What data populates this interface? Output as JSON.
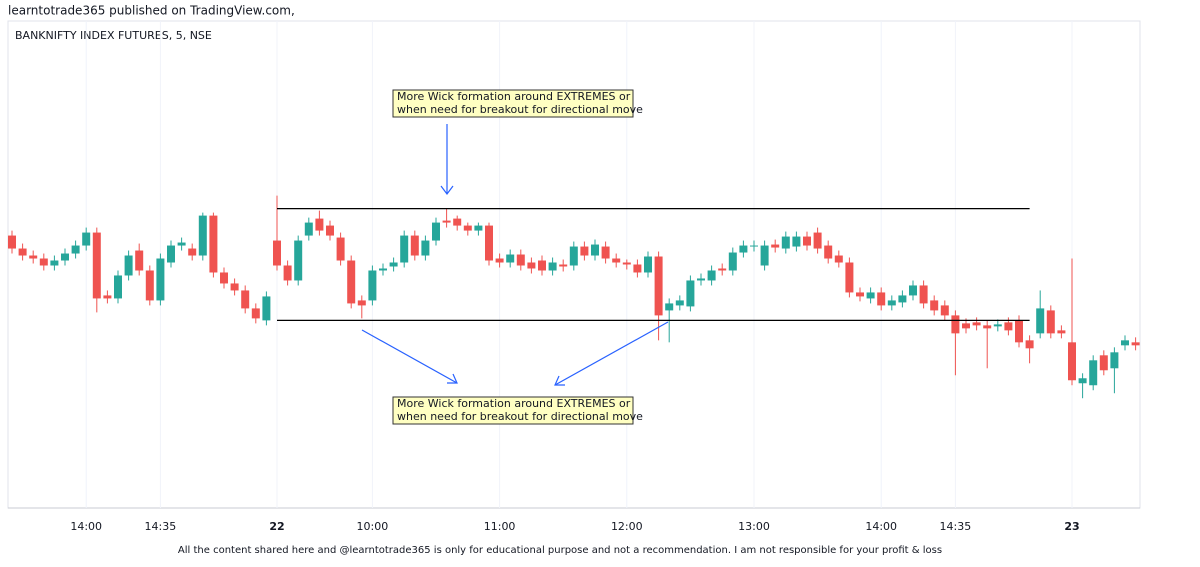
{
  "header": {
    "publisher": "learntotrade365 published on TradingView.com,"
  },
  "chart_data": {
    "type": "candlestick",
    "title": "BANKNIFTY INDEX FUTURES, 5, NSE",
    "x": [
      null,
      null,
      null,
      null,
      null,
      null,
      null,
      "14:00",
      null,
      null,
      null,
      null,
      null,
      null,
      "14:35",
      null,
      null,
      null,
      null,
      null,
      null,
      null,
      null,
      null,
      null,
      "22",
      null,
      null,
      null,
      null,
      null,
      null,
      null,
      null,
      "10:00",
      null,
      null,
      null,
      null,
      null,
      null,
      null,
      null,
      null,
      null,
      null,
      "11:00",
      null,
      null,
      null,
      null,
      null,
      null,
      null,
      null,
      null,
      null,
      null,
      "12:00",
      null,
      null,
      null,
      null,
      null,
      null,
      null,
      null,
      null,
      null,
      null,
      "13:00",
      null,
      null,
      null,
      null,
      null,
      null,
      null,
      null,
      null,
      null,
      null,
      "14:00",
      null,
      null,
      null,
      null,
      null,
      null,
      "14:35",
      null,
      null,
      null,
      null,
      null,
      null,
      null,
      null,
      null,
      null,
      "23",
      null,
      null,
      null,
      null,
      null,
      null
    ],
    "open": [
      273,
      260,
      253,
      250,
      243,
      248,
      255,
      263,
      276,
      213,
      210,
      233,
      258,
      238,
      208,
      246,
      263,
      260,
      253,
      293,
      236,
      225,
      218,
      200,
      188,
      268,
      243,
      228,
      273,
      290,
      283,
      271,
      248,
      208,
      208,
      238,
      242,
      246,
      273,
      253,
      268,
      288,
      290,
      283,
      278,
      283,
      250,
      246,
      254,
      246,
      248,
      238,
      244,
      243,
      262,
      253,
      262,
      250,
      246,
      244,
      236,
      252,
      198,
      203,
      202,
      228,
      228,
      240,
      238,
      256,
      262,
      243,
      264,
      260,
      262,
      272,
      276,
      263,
      253,
      246,
      216,
      210,
      216,
      203,
      206,
      213,
      223,
      208,
      203,
      193,
      185,
      186,
      183,
      182,
      186,
      188,
      168,
      175,
      198,
      178,
      166,
      125,
      123,
      153,
      140,
      163,
      166
    ],
    "high": [
      278,
      265,
      258,
      255,
      253,
      260,
      268,
      281,
      281,
      218,
      238,
      258,
      265,
      243,
      255,
      268,
      271,
      265,
      296,
      296,
      241,
      230,
      223,
      205,
      217,
      313,
      248,
      273,
      291,
      298,
      288,
      276,
      253,
      213,
      243,
      245,
      251,
      278,
      278,
      273,
      291,
      300,
      293,
      286,
      286,
      286,
      255,
      259,
      259,
      251,
      253,
      251,
      249,
      267,
      267,
      269,
      267,
      255,
      249,
      249,
      257,
      257,
      210,
      213,
      233,
      235,
      243,
      245,
      261,
      268,
      268,
      268,
      269,
      277,
      277,
      277,
      281,
      268,
      258,
      251,
      221,
      221,
      221,
      213,
      218,
      228,
      228,
      213,
      208,
      198,
      190,
      191,
      188,
      189,
      191,
      193,
      173,
      218,
      203,
      183,
      250,
      135,
      153,
      158,
      161,
      173,
      171
    ],
    "low": [
      255,
      248,
      245,
      238,
      238,
      243,
      250,
      258,
      196,
      205,
      205,
      228,
      233,
      203,
      203,
      241,
      258,
      248,
      248,
      231,
      220,
      213,
      195,
      185,
      183,
      238,
      223,
      223,
      268,
      273,
      268,
      243,
      200,
      190,
      203,
      233,
      237,
      241,
      248,
      248,
      263,
      281,
      278,
      273,
      273,
      243,
      241,
      241,
      238,
      235,
      233,
      233,
      237,
      238,
      248,
      248,
      245,
      241,
      239,
      231,
      231,
      168,
      166,
      198,
      197,
      223,
      223,
      233,
      233,
      251,
      257,
      238,
      256,
      255,
      257,
      258,
      255,
      245,
      241,
      211,
      207,
      205,
      198,
      198,
      201,
      208,
      200,
      193,
      188,
      133,
      175,
      178,
      140,
      177,
      173,
      161,
      145,
      170,
      170,
      170,
      123,
      110,
      118,
      133,
      115,
      158,
      158
    ],
    "close": [
      260,
      253,
      250,
      243,
      248,
      255,
      263,
      276,
      210,
      210,
      233,
      253,
      238,
      208,
      250,
      263,
      266,
      253,
      293,
      236,
      225,
      218,
      200,
      190,
      212,
      243,
      228,
      268,
      286,
      278,
      273,
      248,
      205,
      203,
      238,
      240,
      246,
      273,
      253,
      268,
      286,
      286,
      283,
      278,
      283,
      248,
      246,
      254,
      243,
      240,
      238,
      246,
      242,
      262,
      253,
      264,
      250,
      246,
      244,
      236,
      252,
      193,
      205,
      208,
      228,
      230,
      238,
      238,
      256,
      263,
      263,
      263,
      261,
      272,
      272,
      263,
      260,
      250,
      246,
      216,
      212,
      216,
      203,
      208,
      213,
      223,
      205,
      198,
      193,
      175,
      180,
      183,
      180,
      184,
      178,
      166,
      160,
      200,
      175,
      175,
      128,
      130,
      148,
      138,
      156,
      168,
      163
    ],
    "ylim": [
      0,
      488
    ],
    "up_color": "#26a69a",
    "down_color": "#ef5350",
    "levels": [
      {
        "value": 300,
        "from": 25,
        "to": 96
      },
      {
        "value": 188,
        "from": 25,
        "to": 96
      }
    ],
    "annotations": [
      {
        "lines": [
          "More Wick formation around EXTREMES or",
          "when need for breakout for directional move"
        ]
      },
      {
        "lines": [
          "More Wick formation around EXTREMES or",
          "when need for breakout for directional move"
        ]
      }
    ]
  },
  "footer": {
    "disclaimer": "All the content shared here and @learntotrade365 is only for educational purpose and not a recommendation. I am not responsible for your profit & loss"
  }
}
